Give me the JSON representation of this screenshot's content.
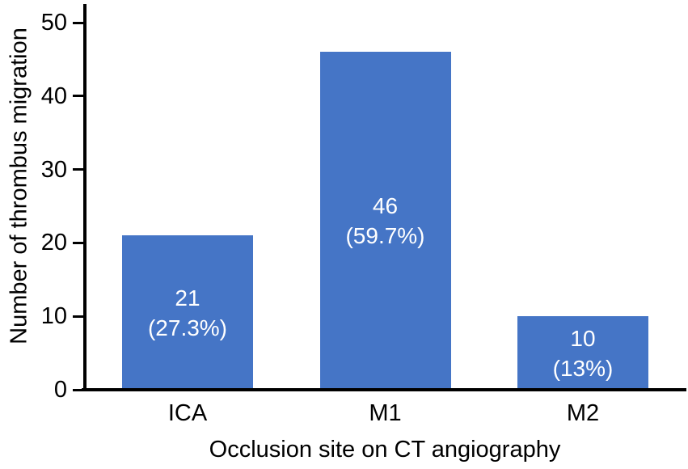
{
  "chart_data": {
    "type": "bar",
    "title": "",
    "xlabel": "Occlusion site on CT angiography",
    "ylabel": "Number of thrombus migration",
    "categories": [
      "ICA",
      "M1",
      "M2"
    ],
    "values": [
      21,
      46,
      10
    ],
    "percentages": [
      27.3,
      59.7,
      13
    ],
    "bar_labels": [
      [
        "21",
        "(27.3%)"
      ],
      [
        "46",
        "(59.7%)"
      ],
      [
        "10",
        "(13%)"
      ]
    ],
    "yticks": [
      0,
      10,
      20,
      30,
      40,
      50
    ],
    "ylim": [
      0,
      50
    ],
    "bar_color": "#4575C6",
    "bar_label_color": "#FFFFFF",
    "axis_color": "#000000",
    "grid": false,
    "legend": false
  }
}
